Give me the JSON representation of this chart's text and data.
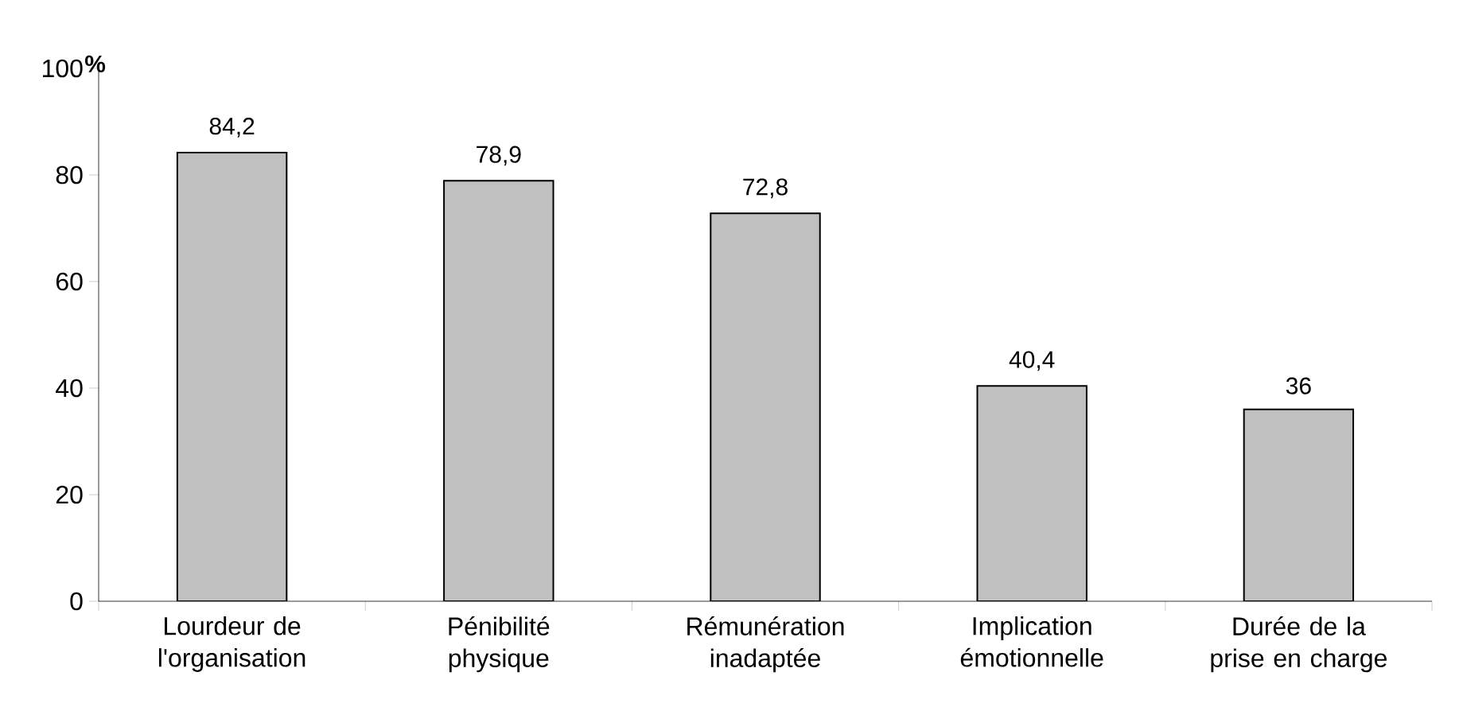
{
  "chart_data": {
    "type": "bar",
    "ylabel": "%",
    "categories": [
      "Lourdeur de l'organisation",
      "Pénibilité physique",
      "Rémunération inadaptée",
      "Implication émotionnelle",
      "Durée de la prise en charge"
    ],
    "values": [
      84.2,
      78.9,
      72.8,
      40.4,
      36
    ],
    "value_labels": [
      "84,2",
      "78,9",
      "72,8",
      "40,4",
      "36"
    ],
    "color": "#c0c0c0",
    "ylim": [
      0,
      100
    ],
    "yticks": [
      0,
      20,
      40,
      60,
      80,
      100
    ]
  }
}
